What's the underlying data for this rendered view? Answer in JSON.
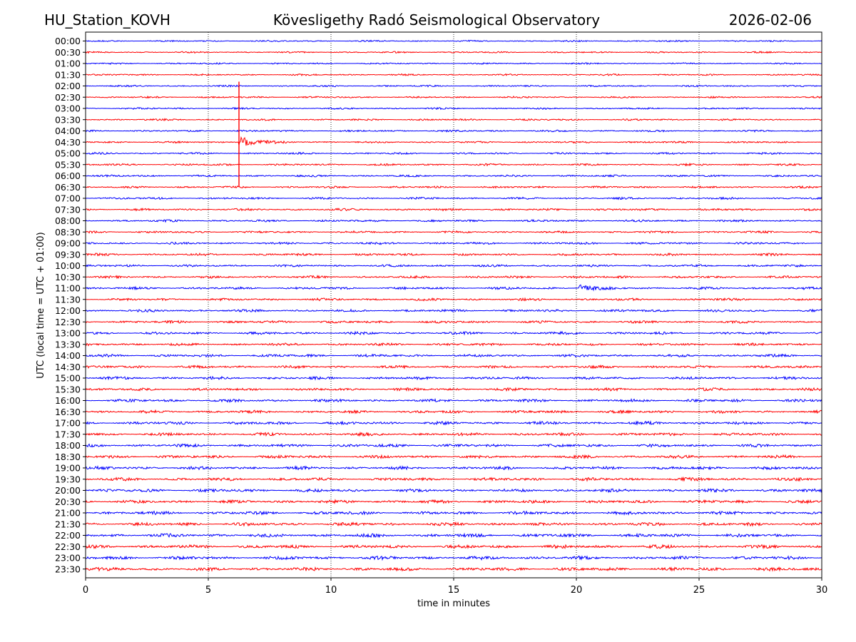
{
  "header": {
    "station": "HU_Station_KOVH",
    "observatory": "Kövesligethy Radó Seismological Observatory",
    "date": "2026-02-06"
  },
  "chart_data": {
    "type": "line",
    "title": "Kövesligethy Radó Seismological Observatory",
    "xlabel": "time in minutes",
    "ylabel": "UTC (local time = UTC + 01:00)",
    "xlim": [
      0,
      30
    ],
    "xticks": [
      0,
      5,
      10,
      15,
      20,
      25,
      30
    ],
    "grid_x": [
      5,
      10,
      15,
      20,
      25
    ],
    "colors": {
      "even": "#0000ff",
      "odd": "#ff0000",
      "grid": "#000000"
    },
    "rows": [
      "00:00",
      "00:30",
      "01:00",
      "01:30",
      "02:00",
      "02:30",
      "03:00",
      "03:30",
      "04:00",
      "04:30",
      "05:00",
      "05:30",
      "06:00",
      "06:30",
      "07:00",
      "07:30",
      "08:00",
      "08:30",
      "09:00",
      "09:30",
      "10:00",
      "10:30",
      "11:00",
      "11:30",
      "12:00",
      "12:30",
      "13:00",
      "13:30",
      "14:00",
      "14:30",
      "15:00",
      "15:30",
      "16:00",
      "16:30",
      "17:00",
      "17:30",
      "18:00",
      "18:30",
      "19:00",
      "19:30",
      "20:00",
      "20:30",
      "21:00",
      "21:30",
      "22:00",
      "22:30",
      "23:00",
      "23:30"
    ],
    "events": [
      {
        "row": "04:30",
        "start_min": 6.25,
        "end_min": 8.5,
        "kind": "large earthquake",
        "spike_from_row": "02:00",
        "spike_to_row": "06:30"
      },
      {
        "row": "11:00",
        "start_min": 20.1,
        "end_min": 21.8,
        "kind": "local event"
      }
    ]
  }
}
